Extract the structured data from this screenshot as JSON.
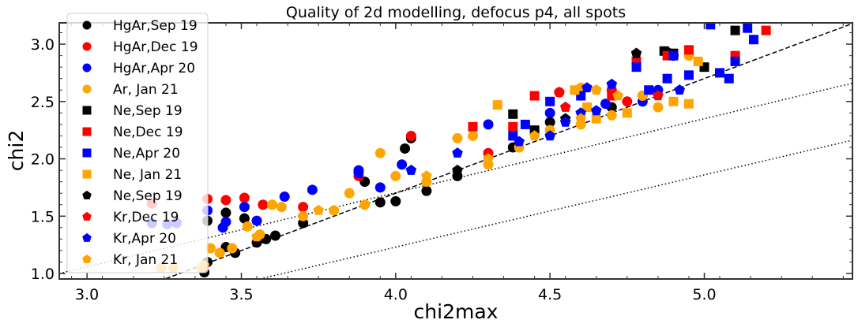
{
  "chart_data": {
    "type": "scatter",
    "title": "Quality of 2d modelling, defocus p4, all spots",
    "xlabel": "chi2max",
    "ylabel": "chi2",
    "xlim": [
      2.91,
      5.48
    ],
    "ylim": [
      0.952,
      3.186
    ],
    "xticks": [
      "3.0",
      "3.5",
      "4.0",
      "4.5",
      "5.0"
    ],
    "xtick_values": [
      3.0,
      3.5,
      4.0,
      4.5,
      5.0
    ],
    "yticks": [
      "1.0",
      "1.5",
      "2.0",
      "2.5",
      "3.0"
    ],
    "ytick_values": [
      1.0,
      1.5,
      2.0,
      2.5,
      3.0
    ],
    "grid": false,
    "legend_position": "top-left",
    "reference_lines": [
      {
        "style": "dashed",
        "slope": 1.0,
        "intercept": -2.3
      },
      {
        "style": "dotted",
        "slope": 0.646,
        "intercept": -0.88
      },
      {
        "style": "dotted",
        "slope": 0.63,
        "intercept": -1.29
      }
    ],
    "series": [
      {
        "name": "HgAr,Sep 19",
        "marker": "circle",
        "color": "#000000",
        "points": [
          [
            3.38,
            1.01
          ],
          [
            3.39,
            1.1
          ],
          [
            3.39,
            1.46
          ],
          [
            3.45,
            1.23
          ],
          [
            3.45,
            1.53
          ],
          [
            3.48,
            1.18
          ],
          [
            3.51,
            1.48
          ],
          [
            3.55,
            1.27
          ],
          [
            3.58,
            1.3
          ],
          [
            3.61,
            1.33
          ],
          [
            3.7,
            1.44
          ],
          [
            3.9,
            1.8
          ],
          [
            3.95,
            1.62
          ],
          [
            4.0,
            1.63
          ],
          [
            4.03,
            2.09
          ],
          [
            4.05,
            2.18
          ],
          [
            4.1,
            1.72
          ],
          [
            4.2,
            1.85
          ],
          [
            4.38,
            2.1
          ],
          [
            4.5,
            2.32
          ],
          [
            4.88,
            2.93
          ],
          [
            4.9,
            2.9
          ],
          [
            4.7,
            2.45
          ],
          [
            4.8,
            2.55
          ]
        ]
      },
      {
        "name": "HgAr,Dec 19",
        "marker": "circle",
        "color": "#ff0000",
        "points": [
          [
            3.21,
            1.61
          ],
          [
            3.39,
            1.65
          ],
          [
            3.45,
            1.64
          ],
          [
            3.51,
            1.66
          ],
          [
            3.57,
            1.6
          ],
          [
            3.7,
            1.58
          ],
          [
            3.88,
            1.85
          ],
          [
            4.05,
            2.2
          ],
          [
            4.3,
            2.05
          ],
          [
            4.53,
            2.58
          ],
          [
            4.75,
            2.5
          ],
          [
            4.7,
            2.6
          ]
        ]
      },
      {
        "name": "HgAr,Apr 20",
        "marker": "circle",
        "color": "#0000ff",
        "points": [
          [
            3.21,
            1.44
          ],
          [
            3.26,
            1.43
          ],
          [
            3.29,
            1.44
          ],
          [
            3.39,
            1.55
          ],
          [
            3.44,
            1.4
          ],
          [
            3.45,
            1.45
          ],
          [
            3.51,
            1.58
          ],
          [
            3.55,
            1.46
          ],
          [
            3.64,
            1.67
          ],
          [
            3.73,
            1.73
          ],
          [
            3.88,
            1.9
          ],
          [
            3.95,
            1.75
          ],
          [
            4.02,
            1.95
          ],
          [
            4.3,
            2.3
          ],
          [
            4.5,
            2.4
          ],
          [
            4.68,
            2.48
          ],
          [
            4.8,
            2.5
          ],
          [
            4.85,
            2.6
          ]
        ]
      },
      {
        "name": "Ar, Jan 21",
        "marker": "circle",
        "color": "#ffa500",
        "points": [
          [
            3.24,
            1.05
          ],
          [
            3.28,
            1.05
          ],
          [
            3.37,
            1.05
          ],
          [
            3.4,
            1.22
          ],
          [
            3.43,
            1.18
          ],
          [
            3.47,
            1.22
          ],
          [
            3.52,
            1.41
          ],
          [
            3.56,
            1.34
          ],
          [
            3.6,
            1.6
          ],
          [
            3.63,
            1.58
          ],
          [
            3.7,
            1.5
          ],
          [
            3.8,
            1.55
          ],
          [
            3.85,
            1.7
          ],
          [
            3.9,
            1.6
          ],
          [
            3.95,
            2.05
          ],
          [
            4.0,
            1.85
          ],
          [
            4.1,
            1.8
          ],
          [
            4.2,
            2.18
          ],
          [
            4.25,
            2.2
          ],
          [
            4.3,
            1.95
          ],
          [
            4.4,
            2.1
          ],
          [
            4.5,
            2.25
          ],
          [
            4.6,
            2.3
          ],
          [
            4.7,
            2.38
          ],
          [
            4.8,
            2.55
          ],
          [
            4.85,
            2.45
          ],
          [
            4.95,
            2.9
          ],
          [
            4.6,
            2.62
          ]
        ]
      },
      {
        "name": "Ne,Sep 19",
        "marker": "square",
        "color": "#000000",
        "points": [
          [
            4.38,
            2.39
          ],
          [
            4.45,
            2.25
          ],
          [
            4.87,
            2.94
          ],
          [
            4.9,
            2.92
          ],
          [
            5.1,
            3.12
          ],
          [
            5.0,
            2.8
          ]
        ]
      },
      {
        "name": "Ne,Dec 19",
        "marker": "square",
        "color": "#ff0000",
        "points": [
          [
            4.25,
            2.28
          ],
          [
            4.38,
            2.28
          ],
          [
            4.45,
            2.55
          ],
          [
            4.7,
            2.55
          ],
          [
            4.88,
            2.9
          ],
          [
            4.95,
            2.95
          ],
          [
            5.2,
            3.12
          ],
          [
            5.1,
            2.9
          ],
          [
            4.78,
            2.85
          ]
        ]
      },
      {
        "name": "Ne,Apr 20",
        "marker": "square",
        "color": "#0000ff",
        "points": [
          [
            4.38,
            2.2
          ],
          [
            4.42,
            2.3
          ],
          [
            4.5,
            2.5
          ],
          [
            4.6,
            2.55
          ],
          [
            4.78,
            2.8
          ],
          [
            4.9,
            2.9
          ],
          [
            4.88,
            2.7
          ],
          [
            5.02,
            3.17
          ],
          [
            5.1,
            2.85
          ],
          [
            5.14,
            3.14
          ],
          [
            5.16,
            3.04
          ],
          [
            5.05,
            2.75
          ],
          [
            5.08,
            2.7
          ],
          [
            4.95,
            2.73
          ],
          [
            4.82,
            2.6
          ]
        ]
      },
      {
        "name": "Ne, Jan 21",
        "marker": "square",
        "color": "#ffa500",
        "points": [
          [
            4.33,
            2.47
          ],
          [
            4.58,
            2.6
          ],
          [
            4.62,
            2.45
          ],
          [
            4.65,
            2.35
          ],
          [
            4.75,
            2.4
          ],
          [
            4.9,
            2.5
          ],
          [
            4.95,
            2.48
          ],
          [
            4.98,
            2.85
          ]
        ]
      },
      {
        "name": "Ne,Sep 19",
        "marker": "pentagon",
        "color": "#000000",
        "points": [
          [
            4.78,
            2.92
          ],
          [
            4.55,
            2.35
          ],
          [
            4.2,
            1.9
          ]
        ]
      },
      {
        "name": "Kr,Dec 19",
        "marker": "pentagon",
        "color": "#ff0000",
        "points": [
          [
            4.53,
            2.58
          ],
          [
            4.65,
            2.6
          ],
          [
            4.85,
            2.55
          ],
          [
            4.55,
            2.45
          ]
        ]
      },
      {
        "name": "Kr,Apr 20",
        "marker": "pentagon",
        "color": "#0000ff",
        "points": [
          [
            3.88,
            1.87
          ],
          [
            4.05,
            1.9
          ],
          [
            4.2,
            2.05
          ],
          [
            4.4,
            2.15
          ],
          [
            4.5,
            2.2
          ],
          [
            4.55,
            2.32
          ],
          [
            4.62,
            2.62
          ],
          [
            4.65,
            2.42
          ],
          [
            4.7,
            2.65
          ],
          [
            4.92,
            2.6
          ],
          [
            4.6,
            2.4
          ]
        ]
      },
      {
        "name": "Kr, Jan 21",
        "marker": "pentagon",
        "color": "#ffa500",
        "points": [
          [
            3.38,
            1.07
          ],
          [
            3.55,
            1.32
          ],
          [
            3.75,
            1.55
          ],
          [
            4.1,
            1.85
          ],
          [
            4.3,
            2.0
          ],
          [
            4.45,
            2.2
          ],
          [
            4.65,
            2.6
          ],
          [
            4.6,
            2.35
          ],
          [
            4.72,
            2.55
          ]
        ]
      }
    ]
  }
}
